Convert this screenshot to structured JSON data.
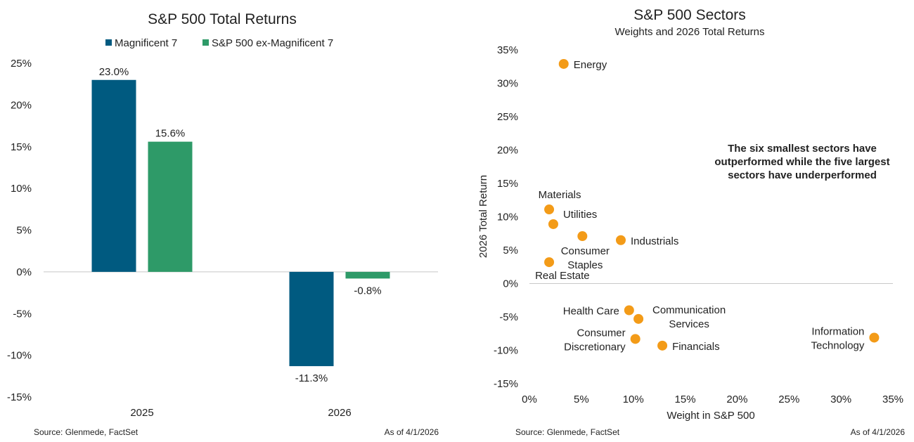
{
  "colors": {
    "mag7": "#005a80",
    "exmag7": "#2e9a68",
    "dot": "#f39b18",
    "axis": "#c8c8c8",
    "text": "#222222"
  },
  "chart_data": [
    {
      "type": "bar",
      "title": "S&P 500 Total Returns",
      "categories": [
        "2025",
        "2026"
      ],
      "series": [
        {
          "name": "Magnificent 7",
          "values": [
            23.0,
            -11.3
          ],
          "labels": [
            "23.0%",
            "-11.3%"
          ]
        },
        {
          "name": "S&P 500 ex-Magnificent 7",
          "values": [
            15.6,
            -0.8
          ],
          "labels": [
            "15.6%",
            "-0.8%"
          ]
        }
      ],
      "ylim": [
        -15,
        25
      ],
      "yticks": [
        -15,
        -10,
        -5,
        0,
        5,
        10,
        15,
        20,
        25
      ],
      "ytick_labels": [
        "-15%",
        "-10%",
        "-5%",
        "0%",
        "5%",
        "10%",
        "15%",
        "20%",
        "25%"
      ],
      "xlabel": "",
      "ylabel": "",
      "legend_position": "top",
      "source": "Source: Glenmede, FactSet",
      "asof": "As of 4/1/2026"
    },
    {
      "type": "scatter",
      "title": "S&P 500 Sectors",
      "subtitle": "Weights and 2026 Total Returns",
      "xlabel": "Weight in S&P 500",
      "ylabel": "2026 Total Return",
      "xlim": [
        0,
        35
      ],
      "ylim": [
        -15,
        35
      ],
      "xticks": [
        0,
        5,
        10,
        15,
        20,
        25,
        30,
        35
      ],
      "xtick_labels": [
        "0%",
        "5%",
        "10%",
        "15%",
        "20%",
        "25%",
        "30%",
        "35%"
      ],
      "yticks": [
        -15,
        -10,
        -5,
        0,
        5,
        10,
        15,
        20,
        25,
        30,
        35
      ],
      "ytick_labels": [
        "-15%",
        "-10%",
        "-5%",
        "0%",
        "5%",
        "10%",
        "15%",
        "20%",
        "25%",
        "30%",
        "35%"
      ],
      "points": [
        {
          "name": "Energy",
          "label": [
            "Energy"
          ],
          "x": 3.3,
          "y": 32.9,
          "anchor": "start",
          "dx": 14,
          "dy": [
            6
          ]
        },
        {
          "name": "Materials",
          "label": [
            "Materials"
          ],
          "x": 1.9,
          "y": 11.1,
          "anchor": "middle",
          "dx": 15,
          "dy": [
            -16
          ]
        },
        {
          "name": "Utilities",
          "label": [
            "Utilities"
          ],
          "x": 2.3,
          "y": 8.9,
          "anchor": "start",
          "dx": 14,
          "dy": [
            -9
          ]
        },
        {
          "name": "Consumer Staples",
          "label": [
            "Consumer",
            "Staples"
          ],
          "x": 5.1,
          "y": 7.1,
          "anchor": "middle",
          "dx": 4,
          "dy": [
            26,
            46
          ]
        },
        {
          "name": "Industrials",
          "label": [
            "Industrials"
          ],
          "x": 8.8,
          "y": 6.5,
          "anchor": "start",
          "dx": 14,
          "dy": [
            6
          ]
        },
        {
          "name": "Real Estate",
          "label": [
            "Real Estate"
          ],
          "x": 1.9,
          "y": 3.2,
          "anchor": "start",
          "dx": -20,
          "dy": [
            24
          ]
        },
        {
          "name": "Health Care",
          "label": [
            "Health Care"
          ],
          "x": 9.6,
          "y": -4.0,
          "anchor": "end",
          "dx": -14,
          "dy": [
            6
          ]
        },
        {
          "name": "Communication Services",
          "label": [
            "Communication",
            "Services"
          ],
          "x": 10.5,
          "y": -5.3,
          "anchor": "middle",
          "dx": 72,
          "dy": [
            -8,
            12
          ]
        },
        {
          "name": "Consumer Discretionary",
          "label": [
            "Consumer",
            "Discretionary"
          ],
          "x": 10.2,
          "y": -8.3,
          "anchor": "end",
          "dx": -14,
          "dy": [
            -4,
            16
          ]
        },
        {
          "name": "Financials",
          "label": [
            "Financials"
          ],
          "x": 12.8,
          "y": -9.3,
          "anchor": "start",
          "dx": 14,
          "dy": [
            6
          ]
        },
        {
          "name": "Information Technology",
          "label": [
            "Information",
            "Technology"
          ],
          "x": 33.2,
          "y": -8.1,
          "anchor": "end",
          "dx": -14,
          "dy": [
            -4,
            16
          ]
        }
      ],
      "annotation": [
        "The six smallest sectors have",
        "outperformed while the five largest",
        "sectors have underperformed"
      ],
      "source": "Source: Glenmede, FactSet",
      "asof": "As of 4/1/2026"
    }
  ]
}
